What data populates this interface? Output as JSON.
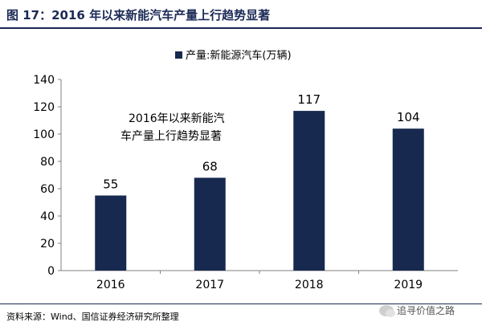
{
  "header": {
    "title": "图 17：2016 年以来新能汽车产量上行趋势显著"
  },
  "chart_data": {
    "type": "bar",
    "categories": [
      "2016",
      "2017",
      "2018",
      "2019"
    ],
    "series": [
      {
        "name": "产量:新能源汽车(万辆)",
        "values": [
          55,
          68,
          117,
          104
        ]
      }
    ],
    "data_labels": [
      "55",
      "68",
      "117",
      "104"
    ],
    "yticks": [
      "0",
      "20",
      "40",
      "60",
      "80",
      "100",
      "120",
      "140"
    ],
    "ylim": [
      0,
      140
    ],
    "legend_position": "top-center",
    "bar_color": "#17294f",
    "annotation": [
      "2016年以来新能汽",
      "车产量上行趋势显著"
    ]
  },
  "footer": {
    "source": "资料来源：Wind、国信证券经济研究所整理",
    "watermark": "追寻价值之路"
  }
}
